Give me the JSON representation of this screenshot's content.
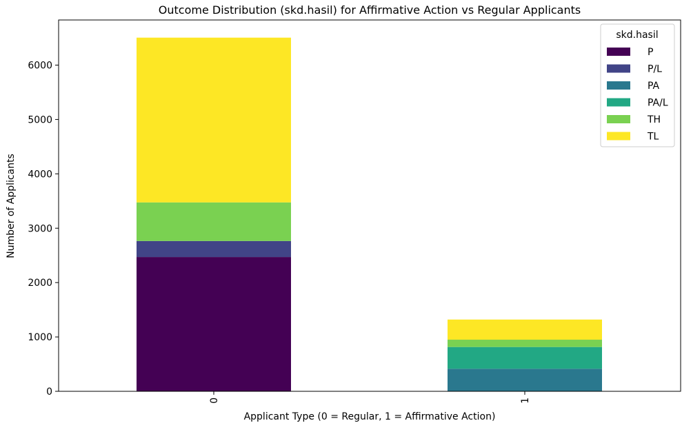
{
  "chart_data": {
    "type": "bar",
    "stacked": true,
    "title": "Outcome Distribution (skd.hasil) for Affirmative Action vs Regular Applicants",
    "xlabel": "Applicant Type (0 = Regular, 1 = Affirmative Action)",
    "ylabel": "Number of Applicants",
    "categories": [
      "0",
      "1"
    ],
    "ylim": [
      0,
      6830
    ],
    "yticks": [
      0,
      1000,
      2000,
      3000,
      4000,
      5000,
      6000
    ],
    "grid": false,
    "legend": {
      "title": "skd.hasil",
      "placement": "top-right"
    },
    "series": [
      {
        "name": "P",
        "color": "#440154",
        "values": [
          2470,
          0
        ]
      },
      {
        "name": "P/L",
        "color": "#414487",
        "values": [
          295,
          0
        ]
      },
      {
        "name": "PA",
        "color": "#2a788e",
        "values": [
          0,
          415
        ]
      },
      {
        "name": "PA/L",
        "color": "#22a884",
        "values": [
          0,
          400
        ]
      },
      {
        "name": "TH",
        "color": "#7ad151",
        "values": [
          710,
          135
        ]
      },
      {
        "name": "TL",
        "color": "#fde725",
        "values": [
          3030,
          370
        ]
      }
    ]
  }
}
